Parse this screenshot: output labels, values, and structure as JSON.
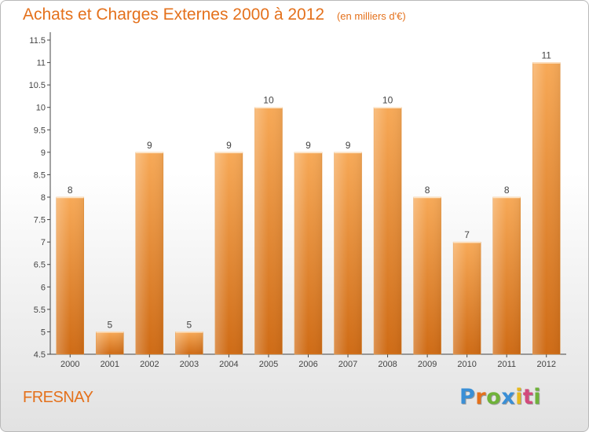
{
  "chart_data": {
    "type": "bar",
    "title": "Achats et Charges Externes 2000 à 2012",
    "subtitle": "(en milliers d'€)",
    "categories": [
      "2000",
      "2001",
      "2002",
      "2003",
      "2004",
      "2005",
      "2006",
      "2007",
      "2008",
      "2009",
      "2010",
      "2011",
      "2012"
    ],
    "values": [
      8,
      5,
      9,
      5,
      9,
      10,
      9,
      9,
      10,
      8,
      7,
      8,
      11
    ],
    "ylim": [
      4.5,
      11.5
    ],
    "yticks": [
      "4.5",
      "5",
      "5.5",
      "6",
      "6.5",
      "7",
      "7.5",
      "8",
      "8.5",
      "9",
      "9.5",
      "10",
      "10.5",
      "11",
      "11.5"
    ],
    "grid": false,
    "bar_color": "#f09a3c"
  },
  "commune": "FRESNAY",
  "logo": {
    "letters": [
      "P",
      "r",
      "o",
      "x",
      "i",
      "t",
      "i"
    ],
    "colors": [
      "#3a8fd6",
      "#e4711c",
      "#6fb23a",
      "#3a8fd6",
      "#e6b81e",
      "#d24a7c",
      "#6fb23a"
    ]
  }
}
